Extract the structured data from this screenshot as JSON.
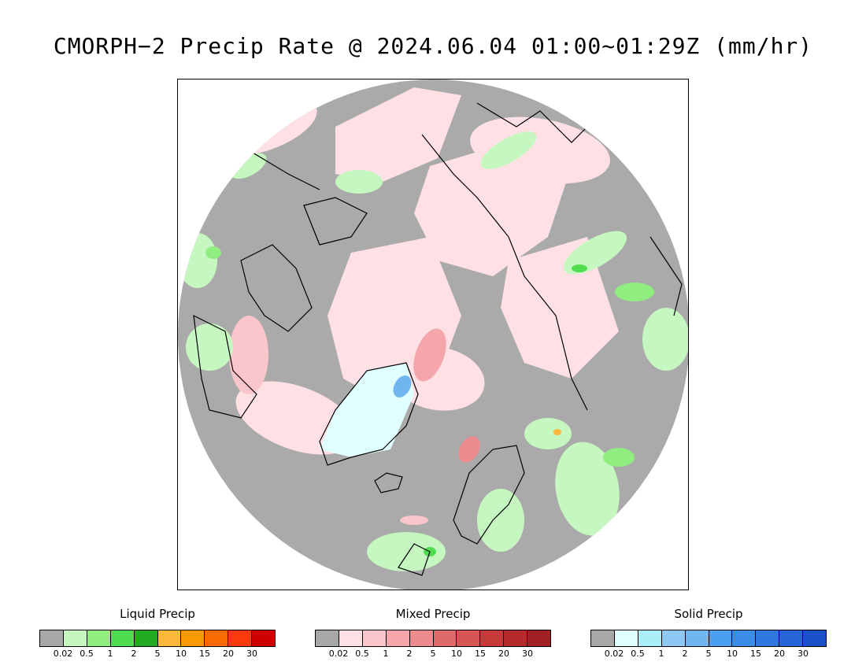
{
  "title": "CMORPH−2 Precip Rate @ 2024.06.04 01:00~01:29Z (mm/hr)",
  "map": {
    "projection": "north-polar-stereographic",
    "background_color": "#aaaaaa",
    "coastline_color": "#000000"
  },
  "legends": [
    {
      "title": "Liquid Precip",
      "ticks": [
        "0.02",
        "0.5",
        "1",
        "2",
        "5",
        "10",
        "15",
        "20",
        "30"
      ],
      "colors": [
        "#a8a8a8",
        "#c6f7c0",
        "#90ee80",
        "#4fdd4f",
        "#22aa22",
        "#fbb83c",
        "#fb9a00",
        "#fb6a00",
        "#fb3a10",
        "#cc0000"
      ]
    },
    {
      "title": "Mixed Precip",
      "ticks": [
        "0.02",
        "0.5",
        "1",
        "2",
        "5",
        "10",
        "15",
        "20",
        "30"
      ],
      "colors": [
        "#a8a8a8",
        "#ffe0e4",
        "#fbc6cb",
        "#f4a6aa",
        "#ec8c8f",
        "#df6a6b",
        "#d85555",
        "#c83a3a",
        "#b52b2b",
        "#a02024"
      ]
    },
    {
      "title": "Solid Precip",
      "ticks": [
        "0.02",
        "0.5",
        "1",
        "2",
        "5",
        "10",
        "15",
        "20",
        "30"
      ],
      "colors": [
        "#a8a8a8",
        "#e0ffff",
        "#aaeef8",
        "#8ec8f4",
        "#70b4f0",
        "#4aa0ee",
        "#3a8ce8",
        "#2e78e0",
        "#2666d8",
        "#1a50c8"
      ]
    }
  ]
}
